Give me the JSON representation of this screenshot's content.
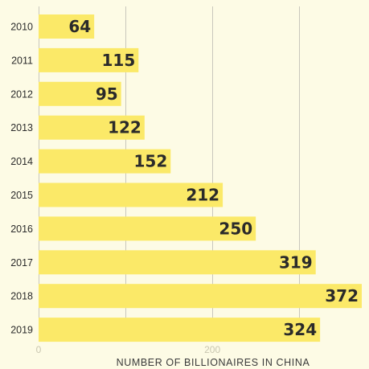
{
  "chart_data": {
    "type": "bar",
    "orientation": "horizontal",
    "title": "",
    "xlabel": "NUMBER OF BILLIONAIRES IN CHINA",
    "ylabel": "",
    "categories": [
      "2010",
      "2011",
      "2012",
      "2013",
      "2014",
      "2015",
      "2016",
      "2017",
      "2018",
      "2019"
    ],
    "values": [
      64,
      115,
      95,
      122,
      152,
      212,
      250,
      319,
      372,
      324
    ],
    "xlim": [
      0,
      372
    ],
    "xticks": [
      {
        "value": 0,
        "label": "0"
      },
      {
        "value": 200,
        "label": "200"
      }
    ],
    "gridlines": [
      0,
      100,
      200,
      300
    ],
    "grid": true,
    "legend": "none",
    "colors": {
      "bar": "#fbe968",
      "background": "#fdfbe5",
      "grid": "#c9c7bc",
      "value_text": "#2a2a2a"
    }
  }
}
